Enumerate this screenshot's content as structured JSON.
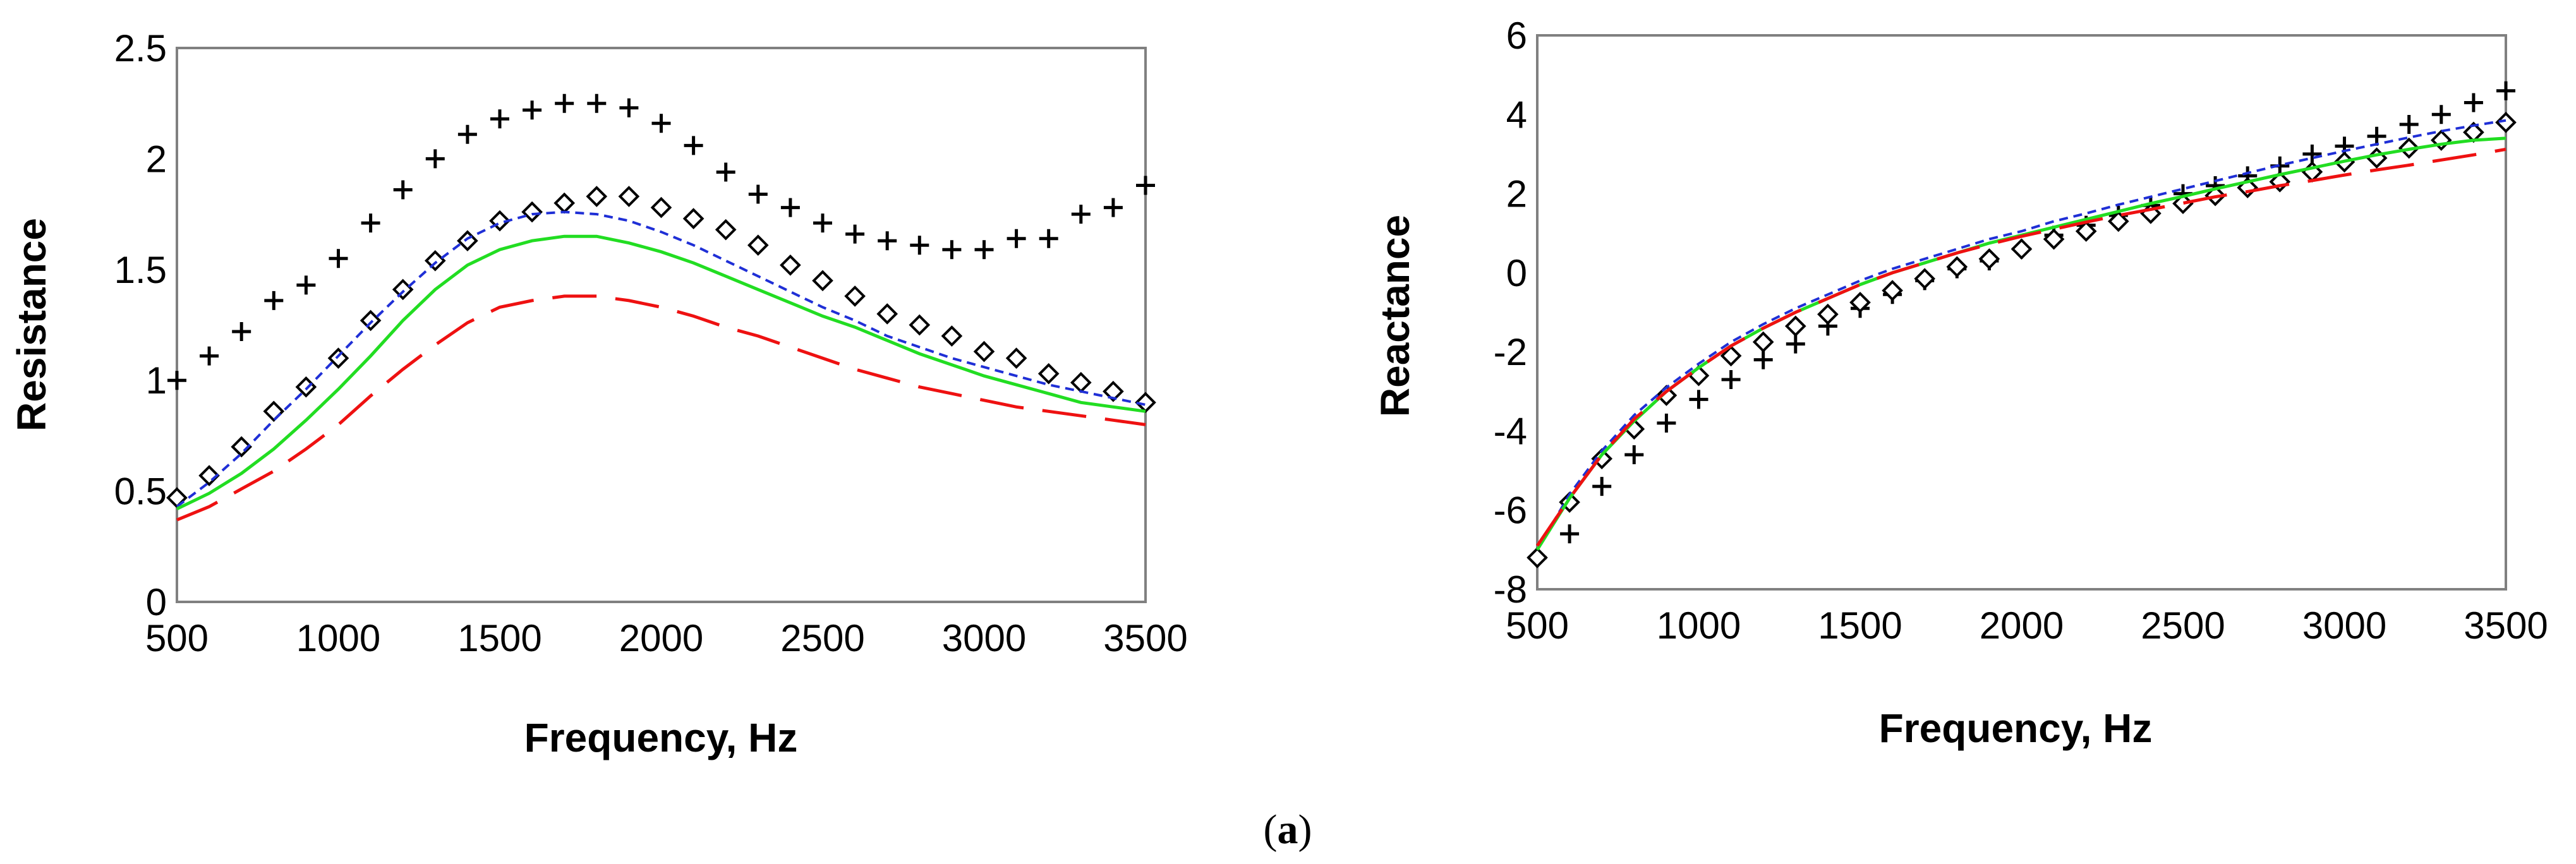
{
  "caption": {
    "open": "(",
    "label": "a",
    "close": ")"
  },
  "colors": {
    "plus": "#000000",
    "diamond": "#000000",
    "blue": "#1f2fd6",
    "green": "#22dd22",
    "red": "#ee1111",
    "frame": "#808080"
  },
  "chart_data": [
    {
      "id": "resistance",
      "type": "line",
      "xlabel": "Frequency, Hz",
      "ylabel": "Resistance",
      "xlim": [
        500,
        3500
      ],
      "ylim": [
        0,
        2.5
      ],
      "xticks": [
        "500",
        "1000",
        "1500",
        "2000",
        "2500",
        "3000",
        "3500"
      ],
      "yticks": [
        "0",
        "0.5",
        "1",
        "1.5",
        "2",
        "2.5"
      ],
      "x": [
        500,
        600,
        700,
        800,
        900,
        1000,
        1100,
        1200,
        1300,
        1400,
        1500,
        1600,
        1700,
        1800,
        1900,
        2000,
        2100,
        2200,
        2300,
        2400,
        2500,
        2600,
        2700,
        2800,
        2900,
        3000,
        3100,
        3200,
        3300,
        3400,
        3500
      ],
      "series": [
        {
          "name": "plus markers",
          "style": "plus",
          "values": [
            1.0,
            1.11,
            1.22,
            1.36,
            1.43,
            1.55,
            1.71,
            1.86,
            2.0,
            2.11,
            2.18,
            2.22,
            2.25,
            2.25,
            2.23,
            2.16,
            2.06,
            1.94,
            1.84,
            1.78,
            1.71,
            1.66,
            1.63,
            1.61,
            1.59,
            1.59,
            1.64,
            1.64,
            1.75,
            1.78,
            1.88
          ]
        },
        {
          "name": "diamond markers",
          "style": "diamond",
          "values": [
            0.47,
            0.57,
            0.7,
            0.86,
            0.97,
            1.1,
            1.27,
            1.41,
            1.54,
            1.63,
            1.72,
            1.76,
            1.8,
            1.83,
            1.83,
            1.78,
            1.73,
            1.68,
            1.61,
            1.52,
            1.45,
            1.38,
            1.3,
            1.25,
            1.2,
            1.13,
            1.1,
            1.03,
            0.99,
            0.95,
            0.9
          ]
        },
        {
          "name": "blue dashed",
          "style": "dash-blue",
          "values": [
            0.43,
            0.54,
            0.67,
            0.82,
            0.96,
            1.11,
            1.26,
            1.4,
            1.53,
            1.64,
            1.71,
            1.75,
            1.76,
            1.75,
            1.72,
            1.67,
            1.61,
            1.54,
            1.47,
            1.4,
            1.33,
            1.27,
            1.2,
            1.15,
            1.1,
            1.06,
            1.02,
            0.98,
            0.95,
            0.92,
            0.89
          ]
        },
        {
          "name": "green solid",
          "style": "solid-green",
          "values": [
            0.42,
            0.49,
            0.58,
            0.69,
            0.82,
            0.96,
            1.11,
            1.27,
            1.41,
            1.52,
            1.59,
            1.63,
            1.65,
            1.65,
            1.62,
            1.58,
            1.53,
            1.47,
            1.41,
            1.35,
            1.29,
            1.24,
            1.18,
            1.12,
            1.07,
            1.02,
            0.98,
            0.94,
            0.9,
            0.88,
            0.86
          ]
        },
        {
          "name": "red long-dash",
          "style": "longdash-red",
          "values": [
            0.37,
            0.43,
            0.51,
            0.59,
            0.69,
            0.8,
            0.93,
            1.05,
            1.16,
            1.26,
            1.33,
            1.36,
            1.38,
            1.38,
            1.36,
            1.33,
            1.29,
            1.24,
            1.2,
            1.15,
            1.1,
            1.05,
            1.01,
            0.97,
            0.94,
            0.91,
            0.88,
            0.86,
            0.84,
            0.82,
            0.8
          ]
        }
      ]
    },
    {
      "id": "reactance",
      "type": "line",
      "xlabel": "Frequency, Hz",
      "ylabel": "Reactance",
      "xlim": [
        500,
        3500
      ],
      "ylim": [
        -8,
        6
      ],
      "xticks": [
        "500",
        "1000",
        "1500",
        "2000",
        "2500",
        "3000",
        "3500"
      ],
      "yticks": [
        "-8",
        "-6",
        "-4",
        "-2",
        "0",
        "2",
        "4",
        "6"
      ],
      "x": [
        500,
        600,
        700,
        800,
        900,
        1000,
        1100,
        1200,
        1300,
        1400,
        1500,
        1600,
        1700,
        1800,
        1900,
        2000,
        2100,
        2200,
        2300,
        2400,
        2500,
        2600,
        2700,
        2800,
        2900,
        3000,
        3100,
        3200,
        3300,
        3400,
        3500
      ],
      "series": [
        {
          "name": "plus markers",
          "style": "plus",
          "values": [
            -7.2,
            -6.6,
            -5.4,
            -4.6,
            -3.8,
            -3.2,
            -2.7,
            -2.2,
            -1.8,
            -1.35,
            -0.9,
            -0.55,
            -0.2,
            0.1,
            0.3,
            0.6,
            0.95,
            1.2,
            1.45,
            1.7,
            2.0,
            2.2,
            2.45,
            2.7,
            3.0,
            3.2,
            3.45,
            3.75,
            4.0,
            4.3,
            4.6
          ]
        },
        {
          "name": "diamond markers",
          "style": "diamond",
          "values": [
            -7.2,
            -5.8,
            -4.7,
            -3.95,
            -3.1,
            -2.6,
            -2.1,
            -1.75,
            -1.35,
            -1.05,
            -0.75,
            -0.45,
            -0.15,
            0.15,
            0.35,
            0.6,
            0.85,
            1.05,
            1.3,
            1.5,
            1.75,
            1.95,
            2.15,
            2.3,
            2.55,
            2.8,
            2.9,
            3.15,
            3.35,
            3.55,
            3.8
          ]
        },
        {
          "name": "blue dashed",
          "style": "dash-blue",
          "values": [
            -7.0,
            -5.6,
            -4.5,
            -3.6,
            -2.9,
            -2.3,
            -1.75,
            -1.3,
            -0.9,
            -0.55,
            -0.2,
            0.1,
            0.35,
            0.6,
            0.85,
            1.05,
            1.3,
            1.5,
            1.72,
            1.92,
            2.12,
            2.32,
            2.52,
            2.72,
            2.9,
            3.08,
            3.25,
            3.42,
            3.58,
            3.72,
            3.85
          ]
        },
        {
          "name": "green solid",
          "style": "solid-green",
          "values": [
            -7.0,
            -5.7,
            -4.6,
            -3.75,
            -3.0,
            -2.4,
            -1.85,
            -1.4,
            -1.0,
            -0.65,
            -0.3,
            0.0,
            0.25,
            0.5,
            0.75,
            0.95,
            1.15,
            1.35,
            1.55,
            1.75,
            1.93,
            2.12,
            2.3,
            2.48,
            2.65,
            2.82,
            2.98,
            3.12,
            3.25,
            3.35,
            3.4
          ]
        },
        {
          "name": "red long-dash",
          "style": "longdash-red",
          "values": [
            -6.9,
            -5.7,
            -4.6,
            -3.7,
            -3.0,
            -2.4,
            -1.85,
            -1.4,
            -1.0,
            -0.65,
            -0.3,
            0.0,
            0.25,
            0.5,
            0.72,
            0.92,
            1.1,
            1.28,
            1.45,
            1.6,
            1.76,
            1.92,
            2.05,
            2.2,
            2.33,
            2.47,
            2.6,
            2.72,
            2.85,
            2.98,
            3.12
          ]
        }
      ]
    }
  ]
}
